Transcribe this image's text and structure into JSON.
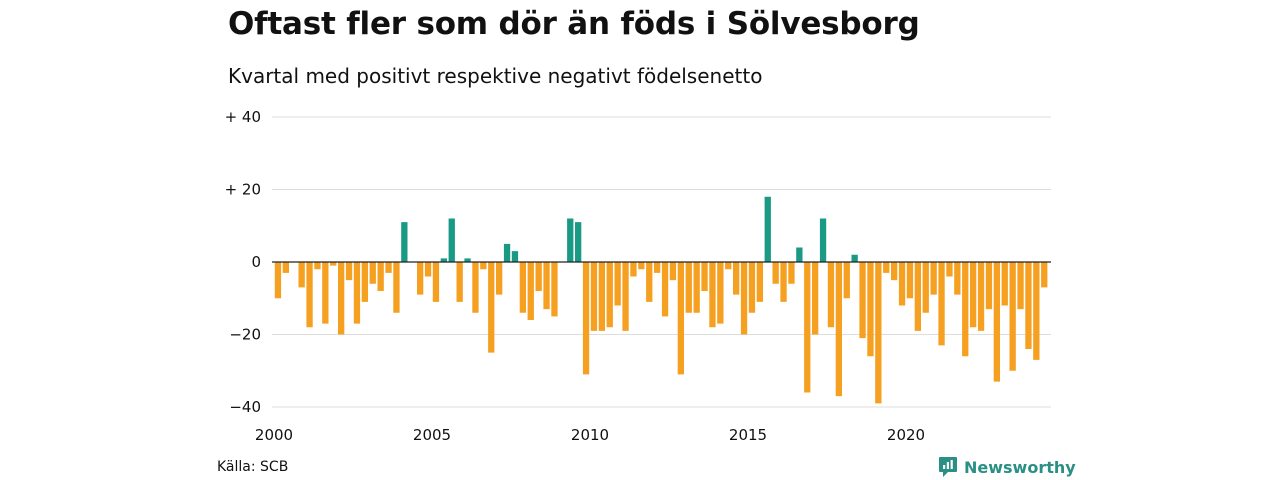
{
  "colors": {
    "positive": "#1a9985",
    "negative": "#f5a020",
    "grid": "#dddddd",
    "zero": "#222222",
    "brand": "#2a8f84"
  },
  "footer": {
    "source": "Källa: SCB",
    "brand": "Newsworthy",
    "brand_icon": "newsworthy-chart-icon"
  },
  "chart_data": {
    "type": "bar",
    "title": "Oftast fler som dör än föds i Sölvesborg",
    "subtitle": "Kvartal med positivt respektive negativt födelsenetto",
    "xlabel": "",
    "ylabel": "",
    "x_start": "2000 Q1",
    "x_ticks": [
      "2000",
      "2005",
      "2010",
      "2015",
      "2020"
    ],
    "y_ticks": [
      40,
      20,
      0,
      -20,
      -40
    ],
    "y_tick_labels": [
      "+ 40",
      "+ 20",
      "0",
      "−20",
      "−40"
    ],
    "ylim": [
      -40,
      40
    ],
    "grid": true,
    "legend": "none",
    "values": [
      -10,
      -3,
      0,
      -7,
      -18,
      -2,
      -17,
      -1,
      -20,
      -5,
      -17,
      -11,
      -6,
      -8,
      -3,
      -14,
      11,
      0,
      -9,
      -4,
      -11,
      1,
      12,
      -11,
      1,
      -14,
      -2,
      -25,
      -9,
      5,
      3,
      -14,
      -16,
      -8,
      -13,
      -15,
      0,
      12,
      11,
      -31,
      -19,
      -19,
      -18,
      -12,
      -19,
      -4,
      -2,
      -11,
      -3,
      -15,
      -5,
      -31,
      -14,
      -14,
      -8,
      -18,
      -17,
      -2,
      -9,
      -20,
      -14,
      -11,
      18,
      -6,
      -11,
      -6,
      4,
      -36,
      -20,
      12,
      -18,
      -37,
      -10,
      2,
      -21,
      -26,
      -39,
      -3,
      -5,
      -12,
      -10,
      -19,
      -14,
      -9,
      -23,
      -4,
      -9,
      -26,
      -18,
      -19,
      -13,
      -33,
      -12,
      -30,
      -13,
      -24,
      -27,
      -7
    ]
  }
}
